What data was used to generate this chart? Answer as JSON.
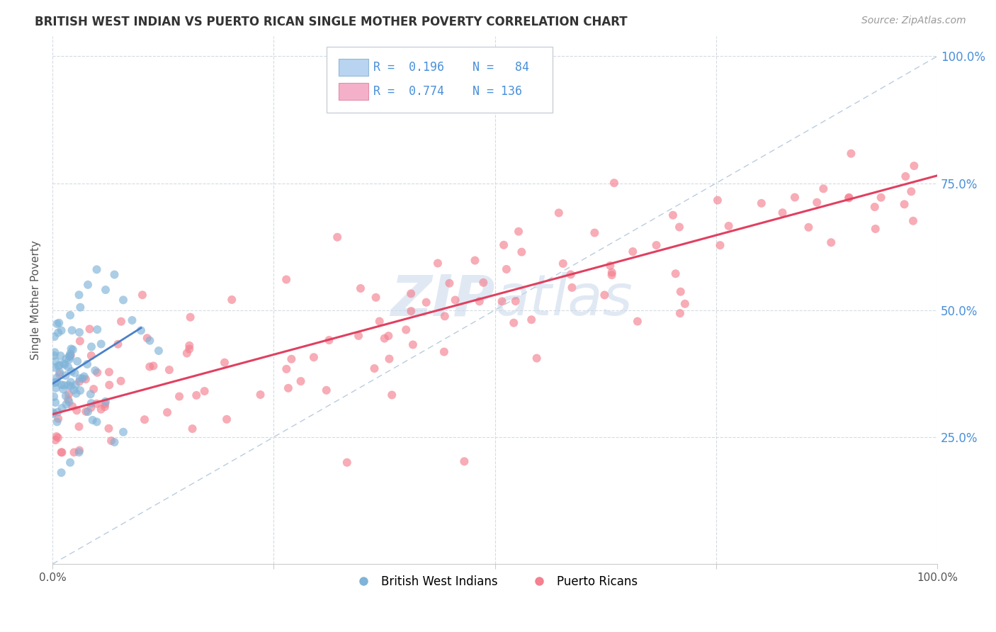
{
  "title": "BRITISH WEST INDIAN VS PUERTO RICAN SINGLE MOTHER POVERTY CORRELATION CHART",
  "source": "Source: ZipAtlas.com",
  "ylabel": "Single Mother Poverty",
  "bwi_color": "#7fb3d8",
  "pr_color": "#f48090",
  "bwi_line_color": "#4a80c8",
  "pr_line_color": "#e04060",
  "watermark_color": "#c8d8ea",
  "background_color": "#ffffff",
  "grid_color": "#d0d8e0",
  "right_axis_color": "#4a90d9",
  "title_color": "#333333",
  "source_color": "#999999",
  "legend_text_color": "#4a90d9",
  "diag_color": "#a8c0d8",
  "bwi_legend_color": "#b8d4f0",
  "pr_legend_color": "#f4b0c8"
}
